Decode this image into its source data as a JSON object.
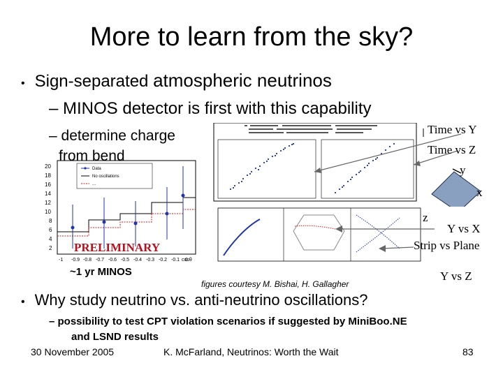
{
  "title": "More to learn from the sky?",
  "bullet1": {
    "marker": "•",
    "prefix": "Sign-separated ",
    "emph": "atmospheric neutrinos"
  },
  "sub1": "– MINOS detector is first with this capability",
  "sub2": {
    "line1": "– determine charge",
    "line2": "from bend"
  },
  "labels": {
    "time_vs_y": "Time vs Y",
    "time_vs_z": "Time vs Z",
    "axis_y": "y",
    "axis_x": "x",
    "axis_z": "z",
    "y_vs_x": "Y vs X",
    "strip_vs_plane": "Strip vs Plane",
    "y_vs_z": "Y vs Z"
  },
  "histogram": {
    "stamp": "PRELIMINARY",
    "legend": [
      "Data",
      "No oscillations",
      "..."
    ],
    "y_ticks": [
      "20",
      "18",
      "16",
      "14",
      "12",
      "10",
      "8",
      "6",
      "4",
      "2"
    ],
    "x_ticks": [
      "-1",
      "-0.9",
      "-0.8",
      "-0.7",
      "-0.6",
      "-0.5",
      "-0.4",
      "-0.3",
      "-0.2",
      "-0.1",
      "0"
    ],
    "x_axis_label": "cosθ",
    "caption": "~1 yr MINOS",
    "colors": {
      "data": "#1f35a8",
      "prediction": "#cc1a1a",
      "stamp": "#b8101c"
    }
  },
  "courtesy": "figures courtesy M. Bishai, H. Gallagher",
  "bullet2": {
    "marker": "•",
    "text": "Why study neutrino vs. anti-neutrino oscillations?"
  },
  "sub3": {
    "line1": "– possibility to test CPT violation scenarios if suggested by MiniBoo.NE",
    "line2": "and LSND results"
  },
  "footer": {
    "date": "30 November 2005",
    "author": "K. McFarland, Neutrinos: Worth the Wait",
    "page": "83"
  }
}
